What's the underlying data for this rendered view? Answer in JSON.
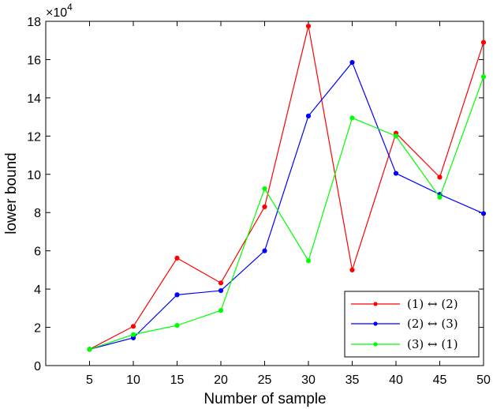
{
  "chart_data": {
    "type": "line",
    "xlabel": "Number of sample",
    "ylabel": "lower bound",
    "y_multiplier": "×10",
    "y_exponent": "4",
    "xlim": [
      0,
      50
    ],
    "ylim": [
      0,
      18
    ],
    "xticks": [
      5,
      10,
      15,
      20,
      25,
      30,
      35,
      40,
      45,
      50
    ],
    "yticks": [
      0,
      2,
      4,
      6,
      8,
      10,
      12,
      14,
      16,
      18
    ],
    "grid": false,
    "legend_position": "bottom-right",
    "x": [
      5,
      10,
      15,
      20,
      25,
      30,
      35,
      40,
      45,
      50
    ],
    "series": [
      {
        "name": "(1) ↔ (2)",
        "color": "#ff0000",
        "values": [
          0.85,
          2.05,
          5.62,
          4.32,
          8.3,
          17.75,
          5.0,
          12.15,
          9.85,
          16.9
        ]
      },
      {
        "name": "(2) ↔ (3)",
        "color": "#0000ff",
        "values": [
          0.85,
          1.45,
          3.7,
          3.92,
          6.0,
          13.05,
          15.85,
          10.05,
          8.95,
          7.95
        ]
      },
      {
        "name": "(3) ↔ (1)",
        "color": "#00ff00",
        "values": [
          0.85,
          1.62,
          2.1,
          2.88,
          9.25,
          5.48,
          12.95,
          12.0,
          8.8,
          15.1
        ]
      }
    ]
  }
}
